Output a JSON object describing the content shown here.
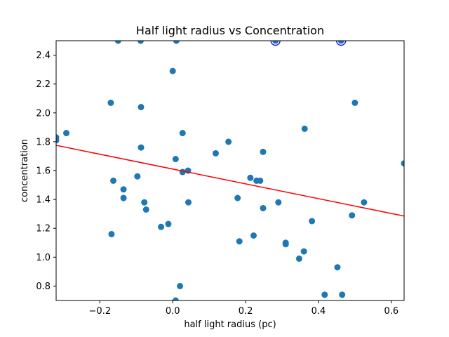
{
  "chart_data": {
    "type": "scatter",
    "title": "Half light radius vs Concentration",
    "xlabel": "half light radius (pc)",
    "ylabel": "concentration",
    "xlim": [
      -0.32,
      0.635
    ],
    "ylim": [
      0.7,
      2.5
    ],
    "grid": false,
    "x_ticks": [
      {
        "value": -0.2,
        "label": "−0.2"
      },
      {
        "value": 0.0,
        "label": "0.0"
      },
      {
        "value": 0.2,
        "label": "0.2"
      },
      {
        "value": 0.4,
        "label": "0.4"
      },
      {
        "value": 0.6,
        "label": "0.6"
      }
    ],
    "y_ticks": [
      {
        "value": 0.8,
        "label": "0.8"
      },
      {
        "value": 1.0,
        "label": "1.0"
      },
      {
        "value": 1.2,
        "label": "1.2"
      },
      {
        "value": 1.4,
        "label": "1.4"
      },
      {
        "value": 1.6,
        "label": "1.6"
      },
      {
        "value": 1.8,
        "label": "1.8"
      },
      {
        "value": 2.0,
        "label": "2.0"
      },
      {
        "value": 2.2,
        "label": "2.2"
      },
      {
        "value": 2.4,
        "label": "2.4"
      }
    ],
    "point_color": "#1f77b4",
    "highlight_color": "#0000ff",
    "line_color": "#ff0000",
    "points": [
      [
        -0.32,
        1.83
      ],
      [
        -0.32,
        1.81
      ],
      [
        -0.292,
        1.86
      ],
      [
        -0.15,
        2.5
      ],
      [
        -0.088,
        2.5
      ],
      [
        0.01,
        2.5
      ],
      [
        0.0,
        2.29
      ],
      [
        -0.17,
        2.07
      ],
      [
        -0.087,
        2.04
      ],
      [
        -0.087,
        1.76
      ],
      [
        0.027,
        1.86
      ],
      [
        0.153,
        1.8
      ],
      [
        0.118,
        1.72
      ],
      [
        0.248,
        1.73
      ],
      [
        0.362,
        1.89
      ],
      [
        0.5,
        2.07
      ],
      [
        0.008,
        1.68
      ],
      [
        0.042,
        1.6
      ],
      [
        0.027,
        1.59
      ],
      [
        -0.163,
        1.53
      ],
      [
        -0.097,
        1.56
      ],
      [
        0.213,
        1.55
      ],
      [
        0.23,
        1.53
      ],
      [
        0.24,
        1.53
      ],
      [
        0.635,
        1.65
      ],
      [
        -0.135,
        1.47
      ],
      [
        -0.135,
        1.41
      ],
      [
        -0.078,
        1.38
      ],
      [
        -0.073,
        1.33
      ],
      [
        0.043,
        1.38
      ],
      [
        0.178,
        1.41
      ],
      [
        0.248,
        1.34
      ],
      [
        0.29,
        1.38
      ],
      [
        0.525,
        1.38
      ],
      [
        0.492,
        1.29
      ],
      [
        0.382,
        1.25
      ],
      [
        -0.032,
        1.21
      ],
      [
        -0.012,
        1.23
      ],
      [
        -0.168,
        1.16
      ],
      [
        0.222,
        1.15
      ],
      [
        0.183,
        1.11
      ],
      [
        0.31,
        1.1
      ],
      [
        0.31,
        1.09
      ],
      [
        0.36,
        1.04
      ],
      [
        0.347,
        0.99
      ],
      [
        0.452,
        0.93
      ],
      [
        0.02,
        0.8
      ],
      [
        0.417,
        0.74
      ],
      [
        0.465,
        0.74
      ],
      [
        0.008,
        0.7
      ]
    ],
    "highlighted_points": [
      [
        0.282,
        2.5
      ],
      [
        0.462,
        2.5
      ]
    ],
    "trend_line": {
      "type": "linear",
      "x": [
        -0.32,
        0.635
      ],
      "y": [
        1.775,
        1.285
      ]
    }
  }
}
